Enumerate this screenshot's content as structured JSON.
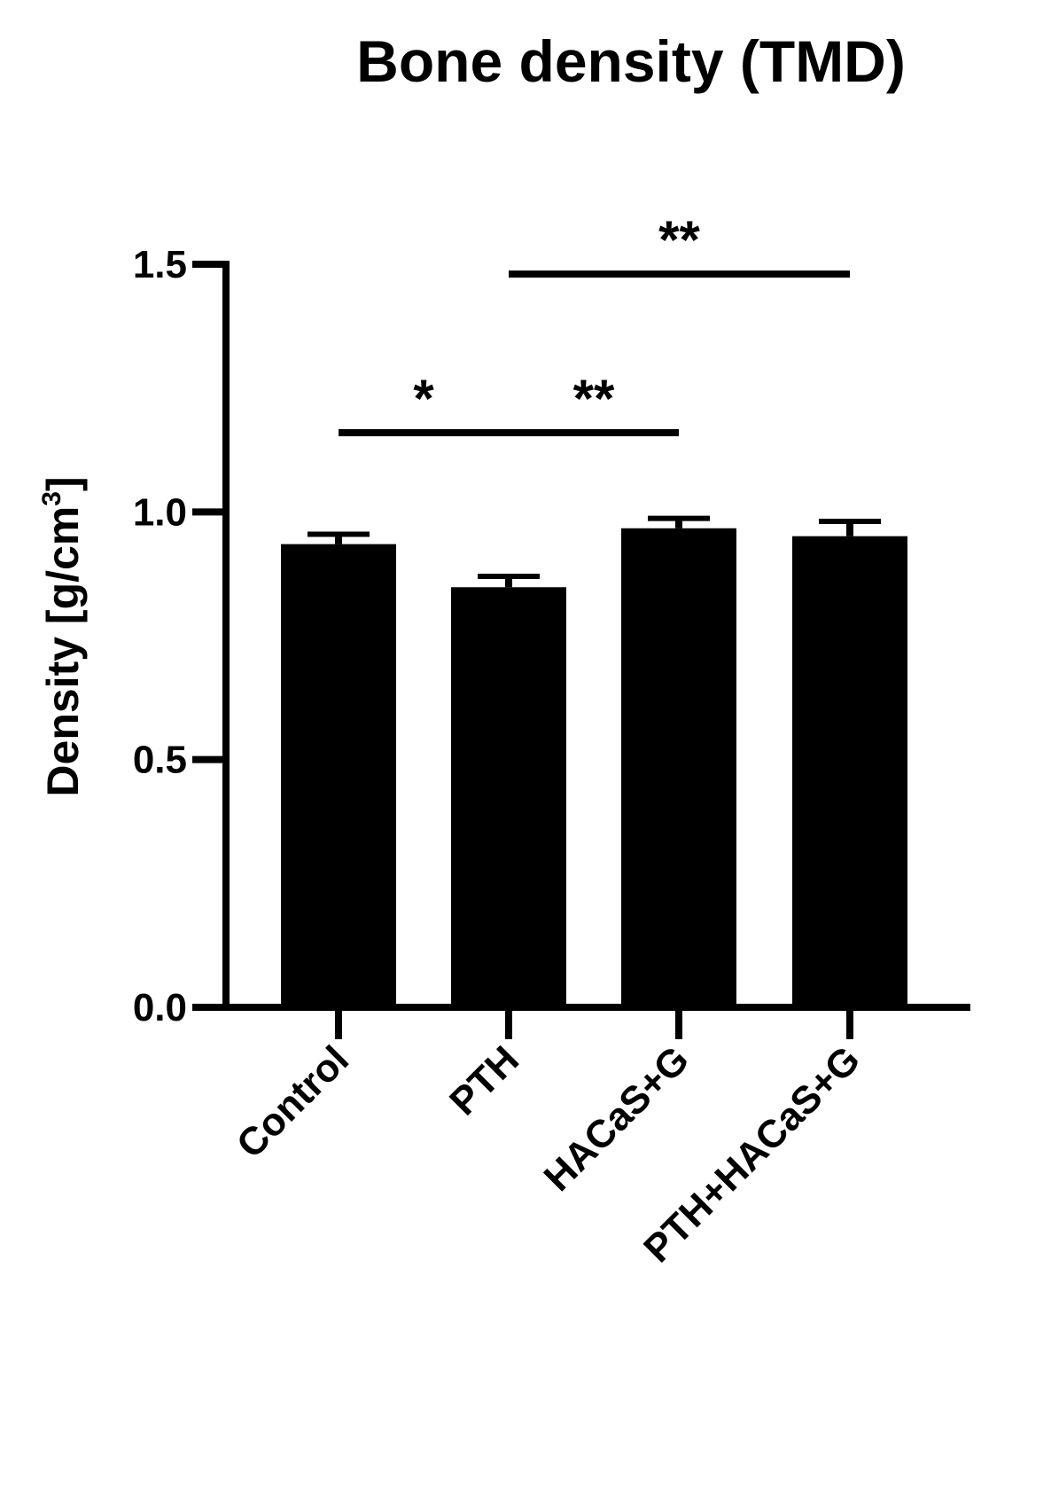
{
  "chart_data": {
    "type": "bar",
    "title": "Bone density (TMD)",
    "ylabel": "Density [g/cm",
    "ylabel_sup": "3",
    "ylabel_close": "]",
    "xlabel": "",
    "categories": [
      "Control",
      "PTH",
      "HACaS+G",
      "PTH+HACaS+G"
    ],
    "values": [
      0.935,
      0.848,
      0.967,
      0.951
    ],
    "errors": [
      0.02,
      0.022,
      0.02,
      0.03
    ],
    "ylim": [
      0,
      1.5
    ],
    "yticks": [
      0.0,
      0.5,
      1.0,
      1.5
    ],
    "ytick_labels": [
      "0.0",
      "0.5",
      "1.0",
      "1.5"
    ],
    "grid": false,
    "bar_color": "#000000",
    "significance": [
      {
        "from": 0,
        "to": 1,
        "y": 1.16,
        "label": "*"
      },
      {
        "from": 1,
        "to": 2,
        "y": 1.16,
        "label": "**"
      },
      {
        "from": 1,
        "to": 3,
        "y": 1.48,
        "label": "**"
      }
    ]
  }
}
